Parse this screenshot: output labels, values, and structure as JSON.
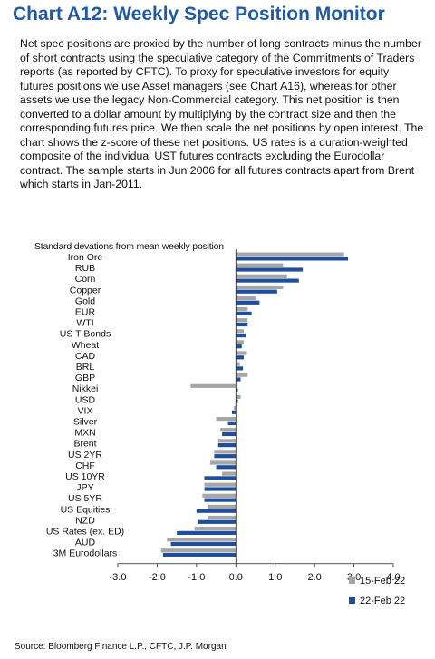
{
  "header": {
    "title": "Chart A12: Weekly Spec Position Monitor",
    "description": "Net spec positions are proxied by the number of long contracts minus the number of short contracts using the speculative category of the Commitments of Traders reports (as reported by CFTC). To proxy for speculative investors for equity futures positions we use Asset managers (see Chart A16), whereas for other assets we use the legacy Non-Commercial category. This net position is then converted to a dollar amount by multiplying by the contract size and then the corresponding futures price. We then scale the net positions by open interest. The chart shows the z-score of these net positions. US rates is a duration-weighted composite of the individual UST futures contracts excluding the Eurodollar contract. The sample starts in Jun 2006 for all futures contracts apart from Brent which starts in Jan-2011."
  },
  "footer": {
    "source": "Source: Bloomberg Finance L.P., CFTC, J.P. Morgan"
  },
  "chart_data": {
    "type": "bar",
    "orientation": "horizontal",
    "title": "",
    "ylabel": "Standard devations from mean weekly position",
    "xlabel": "",
    "xlim": [
      -3.0,
      4.0
    ],
    "xticks": [
      "-3.0",
      "-2.0",
      "-1.0",
      "0.0",
      "1.0",
      "2.0",
      "3.0",
      "4.0"
    ],
    "grid": false,
    "legend_position": "bottom-right",
    "categories": [
      "Iron Ore",
      "RUB",
      "Corn",
      "Copper",
      "Gold",
      "EUR",
      "WTI",
      "US T-Bonds",
      "Wheat",
      "CAD",
      "BRL",
      "GBP",
      "Nikkei",
      "USD",
      "VIX",
      "Silver",
      "MXN",
      "Brent",
      "US 2YR",
      "CHF",
      "US 10YR",
      "JPY",
      "US 5YR",
      "US Equities",
      "NZD",
      "US Rates (ex. ED)",
      "AUD",
      "3M Eurodollars"
    ],
    "series": [
      {
        "name": "15-Feb 22",
        "color": "#a6a6a6",
        "values": [
          2.75,
          1.2,
          1.3,
          1.2,
          0.5,
          0.3,
          0.3,
          0.2,
          0.2,
          0.28,
          0.1,
          0.3,
          -1.15,
          0.12,
          -0.05,
          -0.5,
          -0.4,
          -0.45,
          -0.55,
          -0.65,
          -0.35,
          -0.8,
          -0.85,
          -0.7,
          -0.7,
          -1.05,
          -1.75,
          -1.9
        ]
      },
      {
        "name": "22-Feb 22",
        "color": "#1f4e9c",
        "values": [
          2.85,
          1.7,
          1.6,
          1.05,
          0.6,
          0.4,
          0.3,
          0.25,
          0.15,
          0.2,
          0.18,
          0.12,
          0.05,
          0.05,
          -0.1,
          -0.2,
          -0.35,
          -0.45,
          -0.55,
          -0.5,
          -0.8,
          -0.8,
          -0.8,
          -1.0,
          -0.95,
          -1.5,
          -1.65,
          -1.85
        ]
      }
    ]
  }
}
